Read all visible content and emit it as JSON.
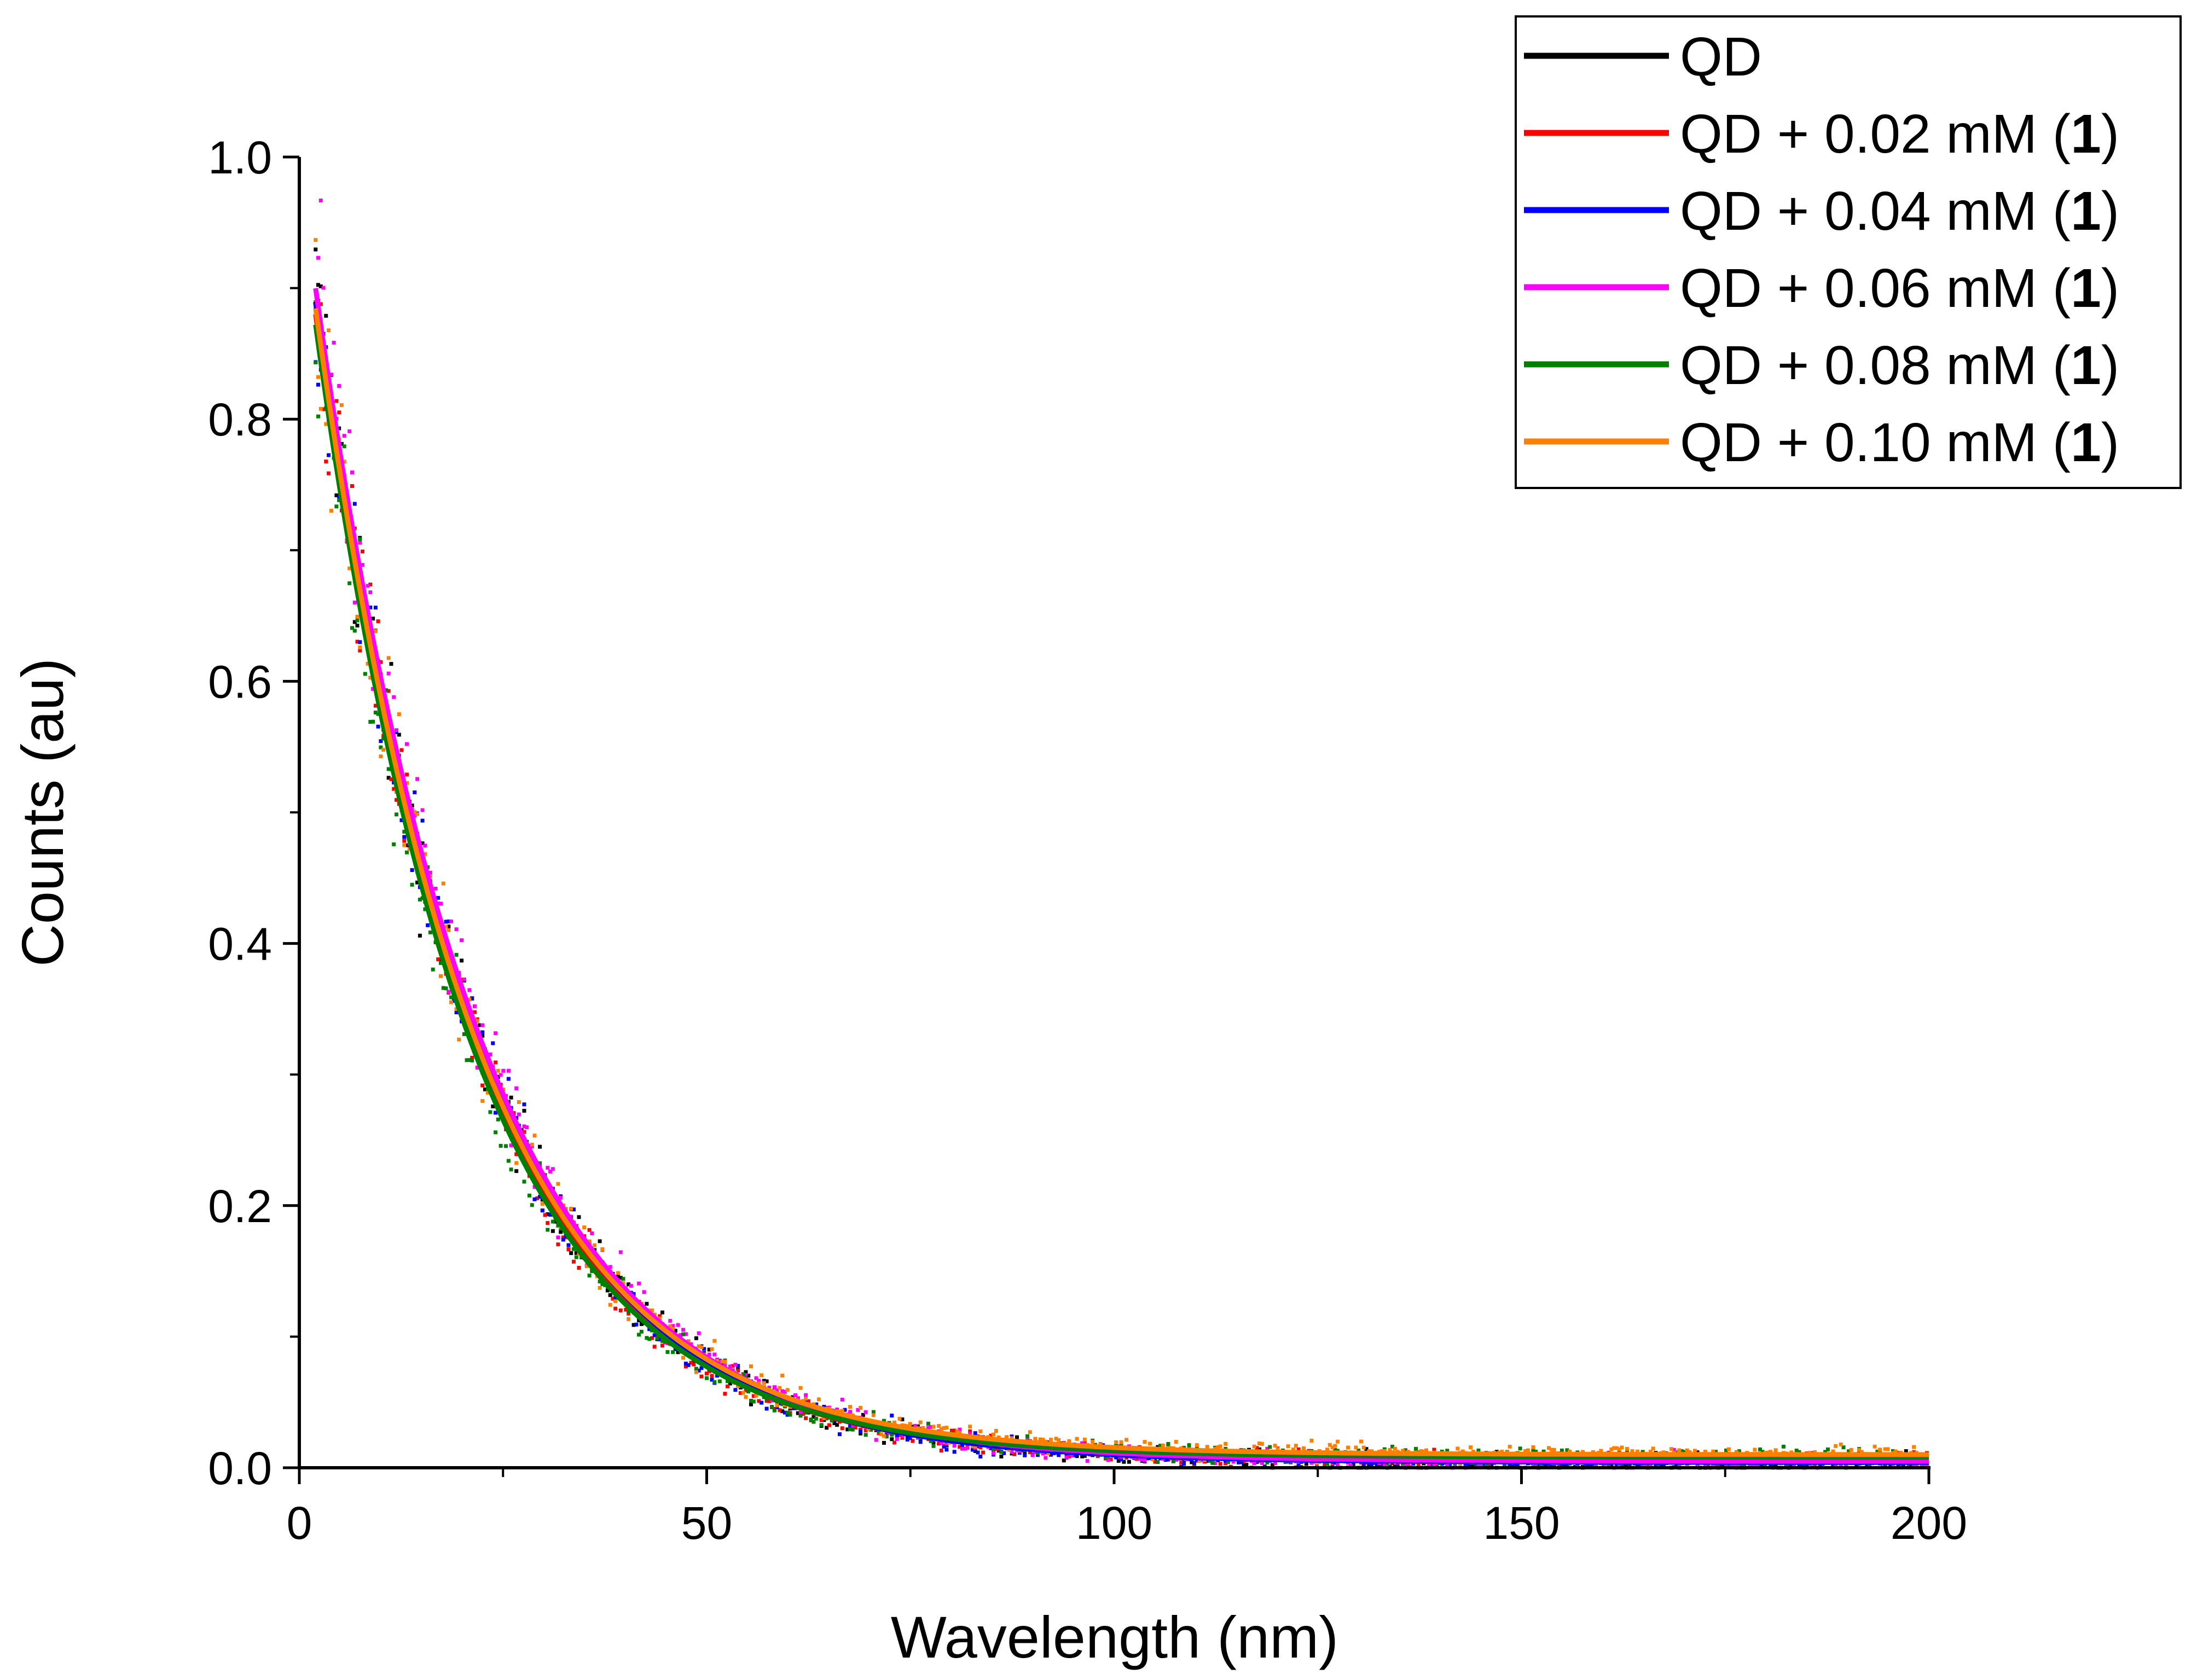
{
  "chart_data": {
    "type": "scatter",
    "title": "",
    "xlabel": "Wavelength (nm)",
    "ylabel": "Counts (au)",
    "xlim": [
      0,
      200
    ],
    "ylim": [
      0,
      1.0
    ],
    "x_ticks": [
      0,
      50,
      100,
      150,
      200
    ],
    "x_tick_labels": [
      "0",
      "50",
      "100",
      "150",
      "200"
    ],
    "y_ticks": [
      0.0,
      0.2,
      0.4,
      0.6,
      0.8,
      1.0
    ],
    "y_tick_labels": [
      "0.0",
      "0.2",
      "0.4",
      "0.6",
      "0.8",
      "1.0"
    ],
    "grid": false,
    "legend_position": "top-right",
    "x_range": [
      2,
      200
    ],
    "decay_model": "a * exp(-x / tau) + c",
    "series": [
      {
        "name": "QD",
        "label_prefix": "QD",
        "label_bold": "",
        "label_suffix": "",
        "color": "#000000",
        "a": 0.98,
        "tau": 19.5,
        "c": 0.005
      },
      {
        "name": "QD + 0.02 mM (1)",
        "label_prefix": "QD + 0.02 mM (",
        "label_bold": "1",
        "label_suffix": ")",
        "color": "#ff0000",
        "a": 0.97,
        "tau": 19.2,
        "c": 0.006
      },
      {
        "name": "QD + 0.04 mM (1)",
        "label_prefix": "QD + 0.04 mM (",
        "label_bold": "1",
        "label_suffix": ")",
        "color": "#0000ff",
        "a": 0.98,
        "tau": 19.6,
        "c": 0.004
      },
      {
        "name": "QD + 0.06 mM (1)",
        "label_prefix": "QD + 0.06 mM (",
        "label_bold": "1",
        "label_suffix": ")",
        "color": "#ff00ff",
        "a": 0.99,
        "tau": 19.8,
        "c": 0.005
      },
      {
        "name": "QD + 0.08 mM (1)",
        "label_prefix": "QD + 0.08 mM (",
        "label_bold": "1",
        "label_suffix": ")",
        "color": "#008000",
        "a": 0.96,
        "tau": 19.0,
        "c": 0.008
      },
      {
        "name": "QD + 0.10 mM (1)",
        "label_prefix": "QD + 0.10 mM (",
        "label_bold": "1",
        "label_suffix": ")",
        "color": "#ff8000",
        "a": 0.97,
        "tau": 19.3,
        "c": 0.01
      }
    ]
  }
}
